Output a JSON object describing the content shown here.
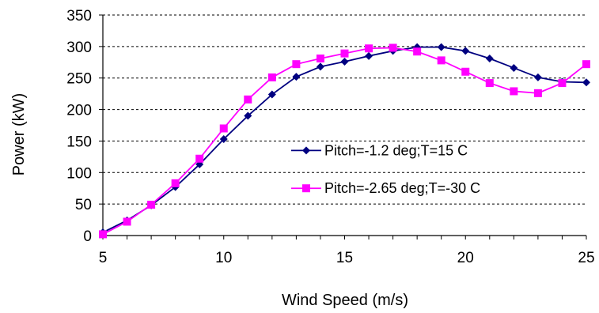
{
  "chart_data": {
    "type": "line",
    "title": "",
    "xlabel": "Wind Speed (m/s)",
    "ylabel": "Power (kW)",
    "xlim": [
      5,
      25
    ],
    "ylim": [
      0,
      350
    ],
    "xticks": [
      5,
      10,
      15,
      20,
      25
    ],
    "yticks": [
      0,
      50,
      100,
      150,
      200,
      250,
      300,
      350
    ],
    "grid": "horizontal dashed",
    "legend_position": "center-right, inside plot",
    "x": [
      5,
      6,
      7,
      8,
      9,
      10,
      11,
      12,
      13,
      14,
      15,
      16,
      17,
      18,
      19,
      20,
      21,
      22,
      23,
      24,
      25
    ],
    "series": [
      {
        "name": "Pitch=-1.2 deg;T=15 C",
        "color": "#000080",
        "marker": "diamond",
        "values": [
          5,
          24,
          48,
          77,
          113,
          153,
          190,
          224,
          252,
          268,
          276,
          285,
          293,
          299,
          299,
          293,
          281,
          266,
          251,
          244,
          243
        ]
      },
      {
        "name": "Pitch=-2.65 deg;T=-30 C",
        "color": "#ff00ff",
        "marker": "square",
        "values": [
          2,
          22,
          49,
          83,
          122,
          170,
          216,
          251,
          272,
          281,
          289,
          297,
          298,
          292,
          278,
          260,
          242,
          229,
          226,
          242,
          272
        ]
      }
    ]
  }
}
